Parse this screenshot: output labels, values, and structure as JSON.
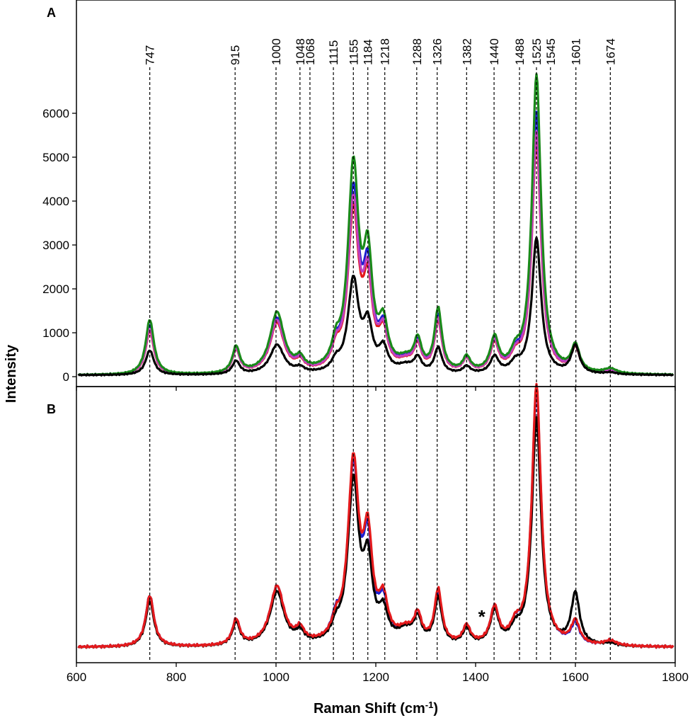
{
  "chart_data": [
    {
      "panel": "A",
      "type": "line",
      "ylabel": "Intensity",
      "xlim": [
        600,
        1800
      ],
      "ylim": [
        -200,
        8500
      ],
      "y_ticks": [
        0,
        1000,
        2000,
        3000,
        4000,
        5000,
        6000
      ],
      "baseline": 30,
      "peak_labels": [
        "747",
        "915",
        "1000",
        "1048",
        "1068",
        "1115",
        "1155",
        "1184",
        "1218",
        "1288",
        "1326",
        "1382",
        "1440",
        "1488",
        "1525",
        "1545",
        "1601",
        "1674"
      ],
      "peak_positions": [
        747,
        918,
        1000,
        1048,
        1068,
        1115,
        1155,
        1184,
        1218,
        1282,
        1323,
        1382,
        1437,
        1488,
        1522,
        1550,
        1601,
        1670
      ],
      "series": [
        {
          "color": "#e41a1c",
          "peaks": [
            [
              747,
              1000,
              10
            ],
            [
              920,
              530,
              9
            ],
            [
              1002,
              1150,
              17
            ],
            [
              1048,
              210,
              10
            ],
            [
              1120,
              400,
              10
            ],
            [
              1155,
              3600,
              13
            ],
            [
              1184,
              1800,
              11
            ],
            [
              1215,
              800,
              11
            ],
            [
              1260,
              200,
              20
            ],
            [
              1284,
              550,
              9
            ],
            [
              1325,
              1150,
              9
            ],
            [
              1382,
              300,
              9
            ],
            [
              1438,
              650,
              10
            ],
            [
              1480,
              300,
              12
            ],
            [
              1522,
              5300,
              11
            ],
            [
              1600,
              560,
              10
            ],
            [
              1670,
              70,
              15
            ]
          ]
        },
        {
          "color": "#1f1fd0",
          "peaks": [
            [
              747,
              1150,
              10
            ],
            [
              920,
              560,
              9
            ],
            [
              1002,
              1250,
              17
            ],
            [
              1048,
              230,
              10
            ],
            [
              1120,
              420,
              10
            ],
            [
              1155,
              4050,
              13
            ],
            [
              1184,
              2050,
              11
            ],
            [
              1215,
              850,
              11
            ],
            [
              1260,
              210,
              20
            ],
            [
              1284,
              600,
              9
            ],
            [
              1325,
              1280,
              9
            ],
            [
              1382,
              310,
              9
            ],
            [
              1438,
              700,
              10
            ],
            [
              1480,
              320,
              12
            ],
            [
              1522,
              5950,
              11
            ],
            [
              1600,
              580,
              10
            ],
            [
              1670,
              90,
              15
            ]
          ]
        },
        {
          "color": "#c040c0",
          "peaks": [
            [
              747,
              1050,
              10
            ],
            [
              920,
              540,
              9
            ],
            [
              1002,
              1200,
              17
            ],
            [
              1048,
              220,
              10
            ],
            [
              1120,
              410,
              10
            ],
            [
              1155,
              3800,
              13
            ],
            [
              1184,
              1900,
              11
            ],
            [
              1215,
              820,
              11
            ],
            [
              1260,
              205,
              20
            ],
            [
              1284,
              570,
              9
            ],
            [
              1325,
              1200,
              9
            ],
            [
              1382,
              305,
              9
            ],
            [
              1438,
              680,
              10
            ],
            [
              1480,
              310,
              12
            ],
            [
              1522,
              5500,
              11
            ],
            [
              1600,
              570,
              10
            ],
            [
              1670,
              80,
              15
            ]
          ]
        },
        {
          "color": "#1a8a1a",
          "peaks": [
            [
              747,
              1250,
              10
            ],
            [
              920,
              600,
              9
            ],
            [
              1002,
              1380,
              17
            ],
            [
              1048,
              250,
              10
            ],
            [
              1120,
              450,
              10
            ],
            [
              1155,
              4600,
              13
            ],
            [
              1184,
              2350,
              11
            ],
            [
              1215,
              950,
              11
            ],
            [
              1260,
              230,
              20
            ],
            [
              1284,
              650,
              9
            ],
            [
              1325,
              1420,
              9
            ],
            [
              1382,
              330,
              9
            ],
            [
              1438,
              760,
              10
            ],
            [
              1480,
              340,
              12
            ],
            [
              1522,
              6800,
              11
            ],
            [
              1600,
              600,
              10
            ],
            [
              1670,
              110,
              15
            ]
          ]
        },
        {
          "color": "#000000",
          "peaks": [
            [
              747,
              560,
              10
            ],
            [
              920,
              300,
              9
            ],
            [
              1002,
              670,
              17
            ],
            [
              1048,
              110,
              10
            ],
            [
              1120,
              210,
              10
            ],
            [
              1155,
              2100,
              13
            ],
            [
              1184,
              1000,
              11
            ],
            [
              1215,
              520,
              11
            ],
            [
              1260,
              160,
              20
            ],
            [
              1284,
              320,
              9
            ],
            [
              1325,
              580,
              9
            ],
            [
              1382,
              160,
              9
            ],
            [
              1438,
              380,
              10
            ],
            [
              1480,
              210,
              12
            ],
            [
              1522,
              3100,
              11
            ],
            [
              1600,
              640,
              10
            ],
            [
              1670,
              40,
              15
            ]
          ]
        }
      ]
    },
    {
      "panel": "B",
      "type": "line",
      "xlabel": "Raman Shift (cm-1)",
      "xlim": [
        600,
        1800
      ],
      "x_ticks": [
        600,
        800,
        1000,
        1200,
        1400,
        1600,
        1800
      ],
      "ylim": [
        -3,
        103
      ],
      "baseline": 1,
      "annotation": {
        "text": "*",
        "x": 1418
      },
      "series": [
        {
          "color": "#1f1fd0",
          "peaks": [
            [
              747,
              20,
              10
            ],
            [
              920,
              10,
              9
            ],
            [
              1002,
              23,
              17
            ],
            [
              1048,
              5,
              10
            ],
            [
              1120,
              7,
              10
            ],
            [
              1155,
              68,
              13
            ],
            [
              1184,
              36,
              11
            ],
            [
              1215,
              14,
              11
            ],
            [
              1260,
              5,
              20
            ],
            [
              1284,
              10,
              9
            ],
            [
              1325,
              20,
              9
            ],
            [
              1382,
              7,
              9
            ],
            [
              1438,
              14,
              10
            ],
            [
              1480,
              6,
              12
            ],
            [
              1522,
              100,
              11
            ],
            [
              1600,
              8,
              10
            ],
            [
              1670,
              2,
              15
            ]
          ]
        },
        {
          "color": "#000000",
          "peaks": [
            [
              747,
              18,
              10
            ],
            [
              920,
              9,
              9
            ],
            [
              1002,
              21,
              17
            ],
            [
              1048,
              4,
              10
            ],
            [
              1120,
              5,
              10
            ],
            [
              1155,
              63,
              13
            ],
            [
              1184,
              29,
              11
            ],
            [
              1215,
              11,
              11
            ],
            [
              1260,
              5,
              20
            ],
            [
              1284,
              9,
              9
            ],
            [
              1325,
              18,
              9
            ],
            [
              1382,
              6,
              9
            ],
            [
              1438,
              13,
              10
            ],
            [
              1480,
              5,
              12
            ],
            [
              1522,
              89,
              11
            ],
            [
              1600,
              20,
              10
            ],
            [
              1670,
              1,
              15
            ]
          ]
        },
        {
          "color": "#e41a1c",
          "peaks": [
            [
              747,
              20,
              10
            ],
            [
              920,
              10,
              9
            ],
            [
              1002,
              23,
              17
            ],
            [
              1048,
              5,
              10
            ],
            [
              1120,
              6,
              10
            ],
            [
              1155,
              70,
              13
            ],
            [
              1184,
              38,
              11
            ],
            [
              1215,
              15,
              11
            ],
            [
              1260,
              5,
              20
            ],
            [
              1284,
              10,
              9
            ],
            [
              1325,
              21,
              9
            ],
            [
              1382,
              7,
              9
            ],
            [
              1438,
              14,
              10
            ],
            [
              1480,
              6,
              12
            ],
            [
              1522,
              102,
              11
            ],
            [
              1600,
              9,
              10
            ],
            [
              1670,
              2,
              15
            ]
          ]
        }
      ]
    }
  ]
}
